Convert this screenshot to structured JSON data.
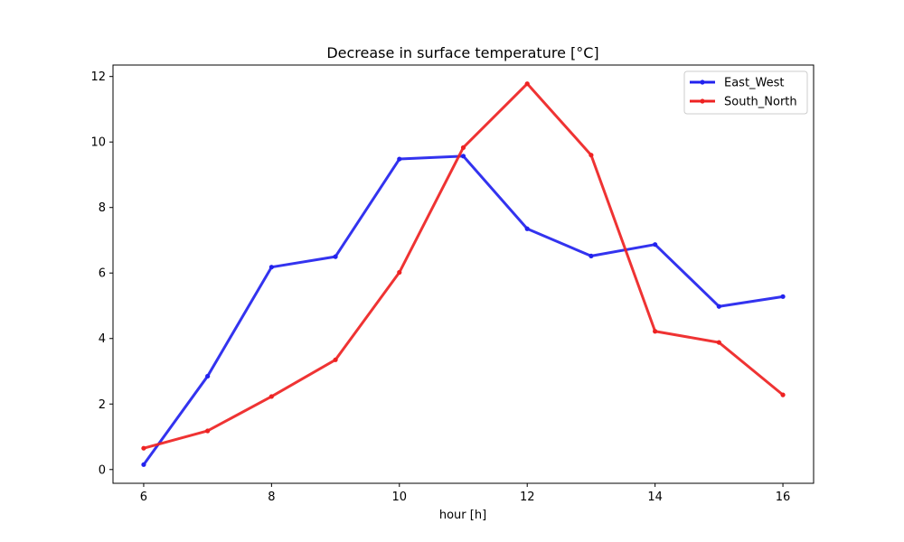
{
  "chart_data": {
    "type": "line",
    "title": "Decrease in surface temperature [°C]",
    "xlabel": "hour [h]",
    "ylabel": "",
    "xlim": [
      5.52,
      16.48
    ],
    "ylim": [
      -0.42,
      12.35
    ],
    "xticks": [
      6,
      8,
      10,
      12,
      14,
      16
    ],
    "yticks": [
      0,
      2,
      4,
      6,
      8,
      10,
      12
    ],
    "grid": false,
    "legend_position": "top-right",
    "x": [
      6,
      7,
      8,
      9,
      10,
      11,
      12,
      13,
      14,
      15,
      16
    ],
    "series": [
      {
        "name": "East_West",
        "color": "#2222ee",
        "values": [
          0.15,
          2.85,
          6.18,
          6.5,
          9.48,
          9.57,
          7.35,
          6.52,
          6.87,
          4.98,
          5.28
        ]
      },
      {
        "name": "South_North",
        "color": "#ee2222",
        "values": [
          0.65,
          1.18,
          2.23,
          3.35,
          6.02,
          9.83,
          11.78,
          9.6,
          4.22,
          3.88,
          2.28
        ]
      }
    ]
  }
}
